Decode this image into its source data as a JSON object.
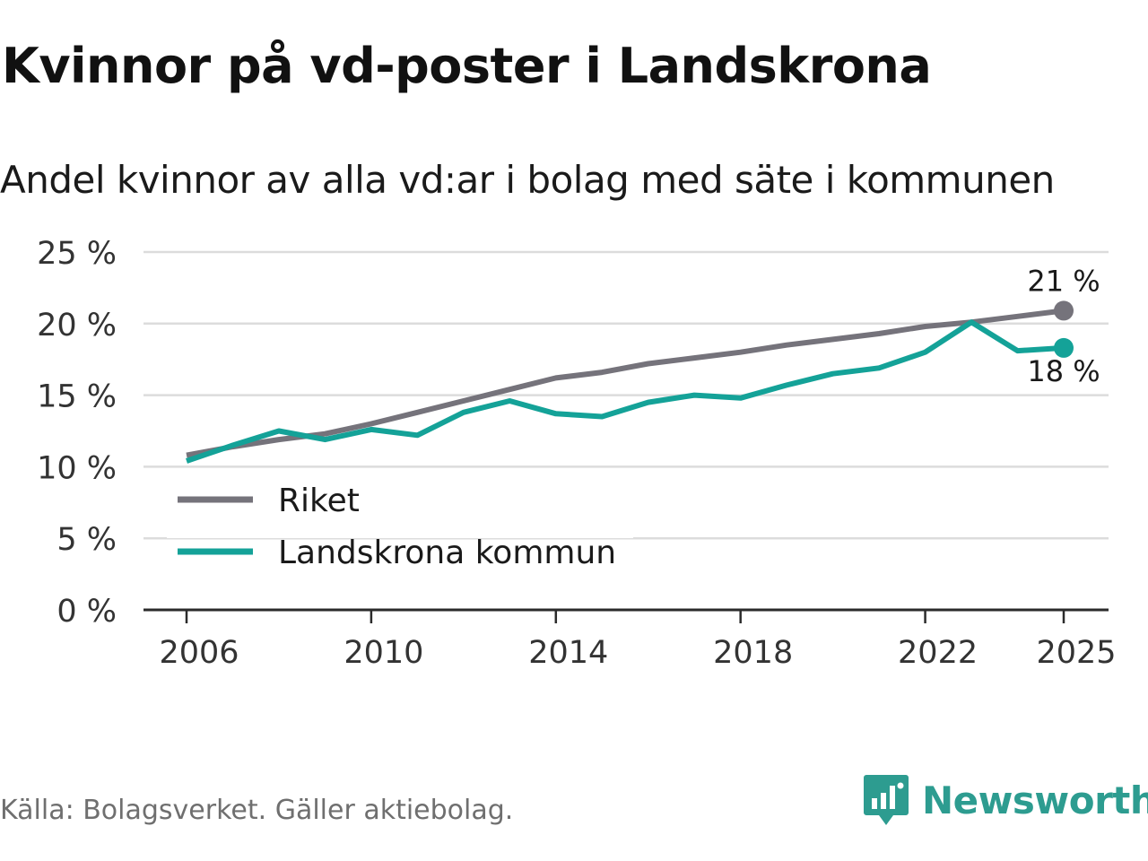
{
  "title": "Kvinnor på vd-poster i Landskrona",
  "subtitle": "Andel kvinnor av alla vd:ar i bolag med säte i kommunen",
  "source": "Källa: Bolagsverket. Gäller aktiebolag.",
  "brand": {
    "name": "Newsworthy",
    "color": "#2d9c90"
  },
  "chart_data": {
    "type": "line",
    "title": "Kvinnor på vd-poster i Landskrona",
    "subtitle": "Andel kvinnor av alla vd:ar i bolag med säte i kommunen",
    "xlabel": "",
    "ylabel": "",
    "ylim": [
      0,
      25
    ],
    "xlim": [
      2006,
      2025
    ],
    "y_ticks": [
      0,
      5,
      10,
      15,
      20,
      25
    ],
    "y_tick_labels": [
      "0 %",
      "5 %",
      "10 %",
      "15 %",
      "20 %",
      "25 %"
    ],
    "x_ticks": [
      2006,
      2010,
      2014,
      2018,
      2022,
      2025
    ],
    "x_tick_labels": [
      "2006",
      "2010",
      "2014",
      "2018",
      "2022",
      "2025"
    ],
    "grid": "horizontal",
    "legend_position": "bottom-left",
    "x": [
      2006,
      2007,
      2008,
      2009,
      2010,
      2011,
      2012,
      2013,
      2014,
      2015,
      2016,
      2017,
      2018,
      2019,
      2020,
      2021,
      2022,
      2023,
      2024,
      2025
    ],
    "series": [
      {
        "name": "Riket",
        "color": "#75737b",
        "values": [
          10.8,
          11.4,
          11.9,
          12.3,
          13.0,
          13.8,
          14.6,
          15.4,
          16.2,
          16.6,
          17.2,
          17.6,
          18.0,
          18.5,
          18.9,
          19.3,
          19.8,
          20.1,
          20.5,
          20.9
        ],
        "end_label": "21 %",
        "end_label_position": "above"
      },
      {
        "name": "Landskrona kommun",
        "color": "#14a298",
        "values": [
          10.4,
          11.5,
          12.5,
          11.9,
          12.6,
          12.2,
          13.8,
          14.6,
          13.7,
          13.5,
          14.5,
          15.0,
          14.8,
          15.7,
          16.5,
          16.9,
          18.0,
          20.1,
          18.1,
          18.3
        ],
        "end_label": "18 %",
        "end_label_position": "below"
      }
    ]
  }
}
